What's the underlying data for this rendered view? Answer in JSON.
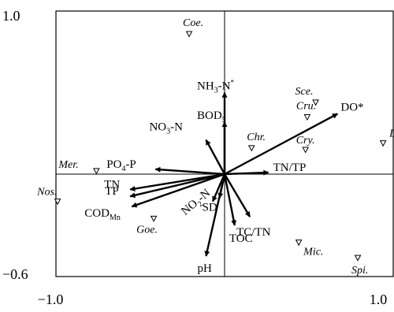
{
  "chart_data": {
    "type": "scatter",
    "title": "",
    "xlabel": "",
    "ylabel": "",
    "xlim": [
      -1.0,
      1.0
    ],
    "ylim": [
      -0.6,
      1.0
    ],
    "grid": false,
    "legend": "none",
    "tick_labels": {
      "x_min": "−1.0",
      "x_max": "1.0",
      "y_min": "−0.6",
      "y_max": "1.0"
    },
    "arrow_color": "#000000",
    "species_marker": "open-triangle",
    "environmental_variables": [
      {
        "label": "NH",
        "sub": "3",
        "after": "-N",
        "sup": "*",
        "x": 0.0,
        "y": 0.5
      },
      {
        "label": "BOD",
        "sub": "5",
        "after": "",
        "sup": "",
        "x": 0.0,
        "y": 0.32
      },
      {
        "label": "NO",
        "sub": "3",
        "after": "-N",
        "sup": "",
        "x": -0.11,
        "y": 0.21
      },
      {
        "label": "DO*",
        "sub": "",
        "after": "",
        "sup": "",
        "x": 0.67,
        "y": 0.37
      },
      {
        "label": "PO",
        "sub": "4",
        "after": "-P",
        "sup": "",
        "x": -0.41,
        "y": 0.03
      },
      {
        "label": "TN/TP",
        "sub": "",
        "after": "",
        "sup": "",
        "x": 0.26,
        "y": 0.01
      },
      {
        "label": "TN",
        "sub": "",
        "after": "",
        "sup": "",
        "x": -0.56,
        "y": -0.09
      },
      {
        "label": "TP",
        "sub": "",
        "after": "",
        "sup": "",
        "x": -0.56,
        "y": -0.13
      },
      {
        "label": "COD",
        "sub": "Mn",
        "after": "",
        "sup": "",
        "x": -0.55,
        "y": -0.19
      },
      {
        "label": "NO",
        "sub": "2",
        "after": "-N",
        "sup": "",
        "x": -0.07,
        "y": -0.16
      },
      {
        "label": "SD",
        "sub": "",
        "after": "",
        "sup": "",
        "x": -0.03,
        "y": -0.14
      },
      {
        "label": "TC/TN",
        "sub": "",
        "after": "",
        "sup": "",
        "x": 0.15,
        "y": -0.25
      },
      {
        "label": "TOC",
        "sub": "",
        "after": "",
        "sup": "",
        "x": 0.06,
        "y": -0.3
      },
      {
        "label": "pH",
        "sub": "",
        "after": "",
        "sup": "",
        "x": -0.11,
        "y": -0.48
      }
    ],
    "species": [
      {
        "name": "Coe.",
        "x": -0.21,
        "y": 0.86
      },
      {
        "name": "Sce.",
        "x": 0.54,
        "y": 0.44
      },
      {
        "name": "Cru.",
        "x": 0.49,
        "y": 0.35
      },
      {
        "name": "Chr.",
        "x": 0.16,
        "y": 0.16
      },
      {
        "name": "Cry.",
        "x": 0.48,
        "y": 0.15
      },
      {
        "name": "Dim.",
        "x": 0.94,
        "y": 0.19
      },
      {
        "name": "Mer.",
        "x": -0.76,
        "y": 0.02
      },
      {
        "name": "Nos.",
        "x": -0.99,
        "y": -0.16
      },
      {
        "name": "Goe.",
        "x": -0.42,
        "y": -0.26
      },
      {
        "name": "Mic.",
        "x": 0.44,
        "y": -0.4
      },
      {
        "name": "Spi.",
        "x": 0.79,
        "y": -0.49
      }
    ]
  }
}
